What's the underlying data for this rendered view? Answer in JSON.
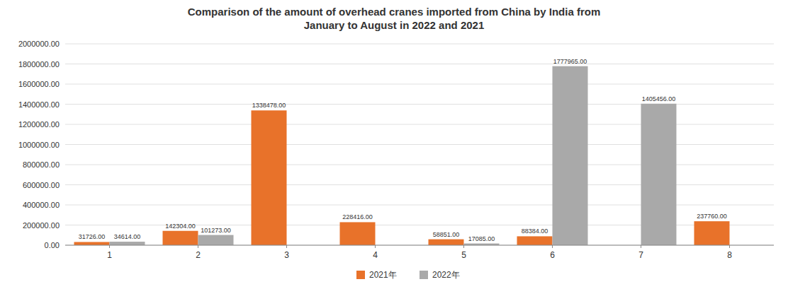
{
  "chart_data": {
    "type": "bar",
    "title": "Comparison of the amount of overhead cranes imported from China by India from\nJanuary to August in 2022 and 2021",
    "categories": [
      "1",
      "2",
      "3",
      "4",
      "5",
      "6",
      "7",
      "8"
    ],
    "series": [
      {
        "name": "2021年",
        "color": "#E8722A",
        "values": [
          31726.0,
          142304.0,
          1338478.0,
          228416.0,
          58851.0,
          88384.0,
          0.0,
          237760.0
        ],
        "value_labels": [
          "31726.00",
          "142304.00",
          "1338478.00",
          "228416.00",
          "58851.00",
          "88384.00",
          null,
          "237760.00"
        ]
      },
      {
        "name": "2022年",
        "color": "#A9A9A9",
        "values": [
          34614.0,
          101273.0,
          0.0,
          0.0,
          17085.0,
          1777965.0,
          1405456.0,
          0.0
        ],
        "value_labels": [
          "34614.00",
          "101273.00",
          null,
          null,
          "17085.00",
          "1777965.00",
          "1405456.00",
          null
        ]
      }
    ],
    "ylim": [
      0,
      2000000
    ],
    "yticks": [
      {
        "value": 0,
        "label": "0.00"
      },
      {
        "value": 200000,
        "label": "200000.00"
      },
      {
        "value": 400000,
        "label": "400000.00"
      },
      {
        "value": 600000,
        "label": "600000.00"
      },
      {
        "value": 800000,
        "label": "800000.00"
      },
      {
        "value": 1000000,
        "label": "1000000.00"
      },
      {
        "value": 1200000,
        "label": "1200000.00"
      },
      {
        "value": 1400000,
        "label": "1400000.00"
      },
      {
        "value": 1600000,
        "label": "1600000.00"
      },
      {
        "value": 1800000,
        "label": "1800000.00"
      },
      {
        "value": 2000000,
        "label": "2000000.00"
      }
    ],
    "grid": true,
    "data_labels": true,
    "legend": "bottom"
  }
}
